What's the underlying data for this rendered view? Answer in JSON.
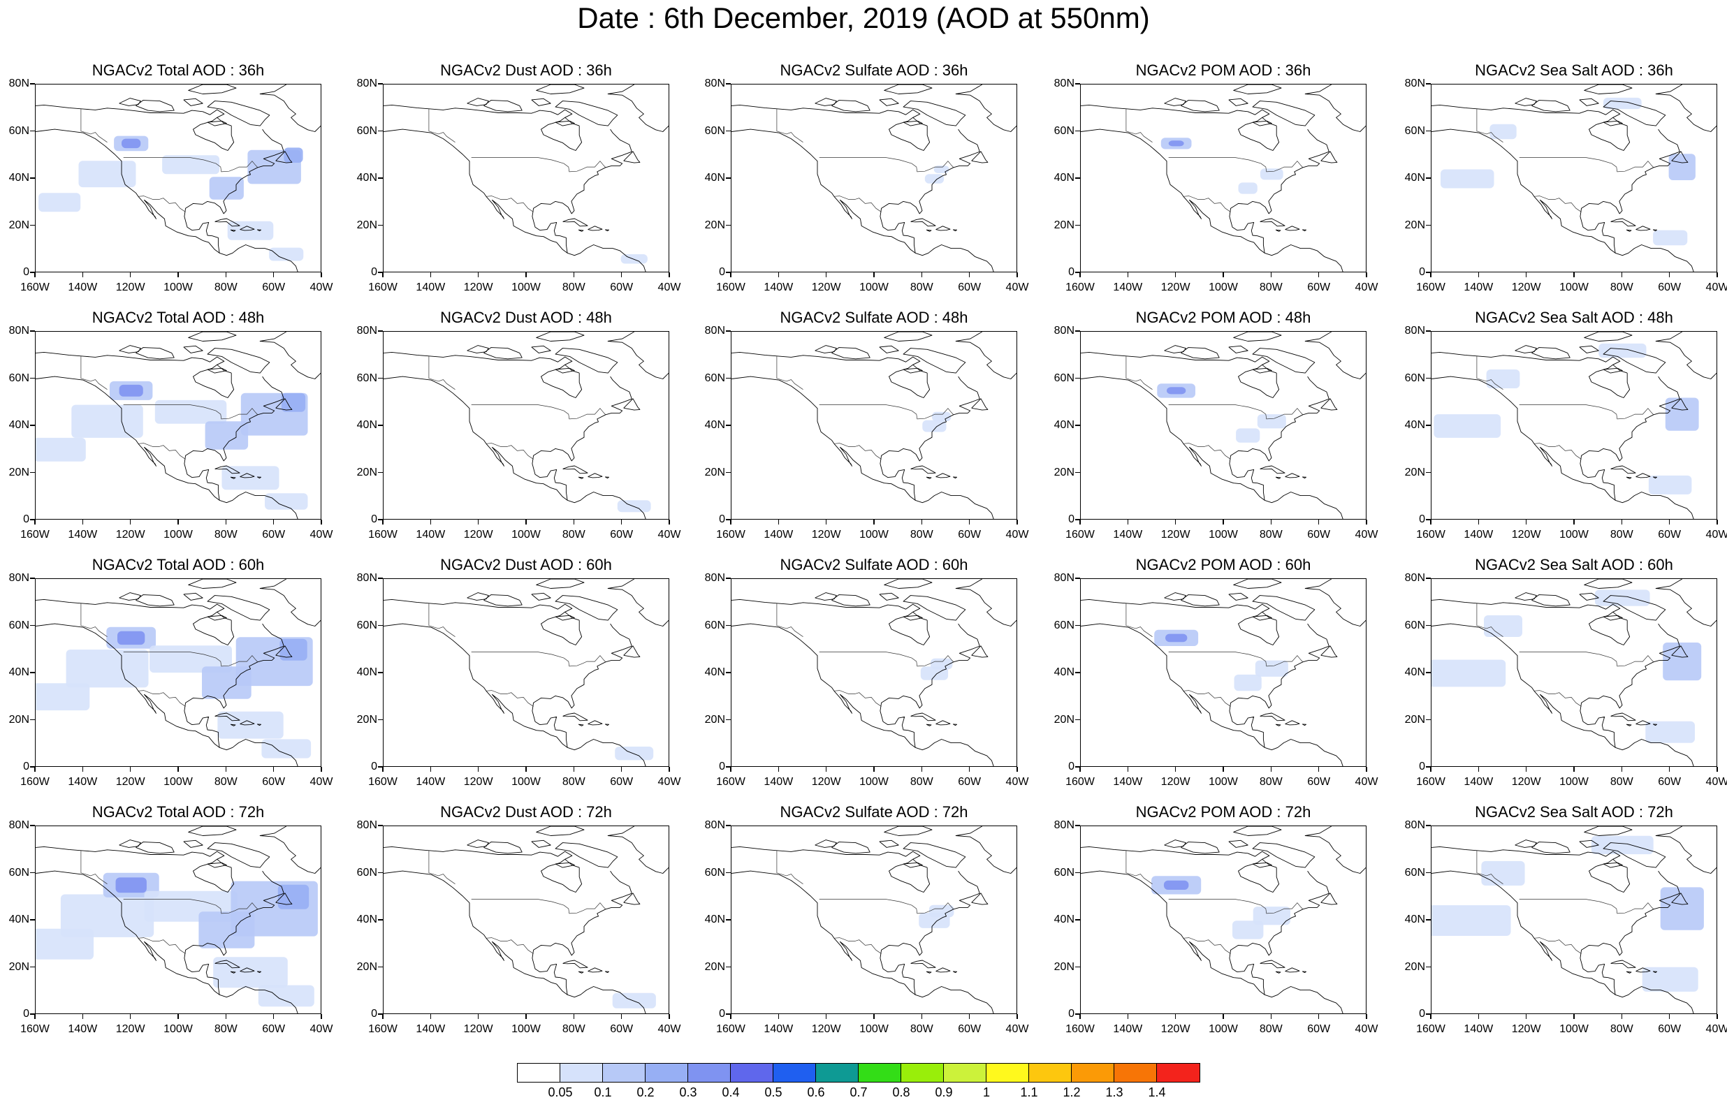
{
  "title": "Date : 6th December, 2019 (AOD at 550nm)",
  "axes": {
    "lon_labels": [
      "160W",
      "140W",
      "120W",
      "100W",
      "80W",
      "60W",
      "40W"
    ],
    "lat_labels": [
      "80N",
      "60N",
      "40N",
      "20N",
      "0"
    ]
  },
  "panels": [
    {
      "title": "NGACv2 Total AOD : 36h",
      "species": "total",
      "hour": 36
    },
    {
      "title": "NGACv2 Dust AOD : 36h",
      "species": "dust",
      "hour": 36
    },
    {
      "title": "NGACv2 Sulfate AOD : 36h",
      "species": "sulfate",
      "hour": 36
    },
    {
      "title": "NGACv2 POM AOD : 36h",
      "species": "pom",
      "hour": 36
    },
    {
      "title": "NGACv2 Sea Salt AOD : 36h",
      "species": "seasalt",
      "hour": 36
    },
    {
      "title": "NGACv2 Total AOD : 48h",
      "species": "total",
      "hour": 48
    },
    {
      "title": "NGACv2 Dust AOD : 48h",
      "species": "dust",
      "hour": 48
    },
    {
      "title": "NGACv2 Sulfate AOD : 48h",
      "species": "sulfate",
      "hour": 48
    },
    {
      "title": "NGACv2 POM AOD : 48h",
      "species": "pom",
      "hour": 48
    },
    {
      "title": "NGACv2 Sea Salt AOD : 48h",
      "species": "seasalt",
      "hour": 48
    },
    {
      "title": "NGACv2 Total AOD : 60h",
      "species": "total",
      "hour": 60
    },
    {
      "title": "NGACv2 Dust AOD : 60h",
      "species": "dust",
      "hour": 60
    },
    {
      "title": "NGACv2 Sulfate AOD : 60h",
      "species": "sulfate",
      "hour": 60
    },
    {
      "title": "NGACv2 POM AOD : 60h",
      "species": "pom",
      "hour": 60
    },
    {
      "title": "NGACv2 Sea Salt AOD : 60h",
      "species": "seasalt",
      "hour": 60
    },
    {
      "title": "NGACv2 Total AOD : 72h",
      "species": "total",
      "hour": 72
    },
    {
      "title": "NGACv2 Dust AOD : 72h",
      "species": "dust",
      "hour": 72
    },
    {
      "title": "NGACv2 Sulfate AOD : 72h",
      "species": "sulfate",
      "hour": 72
    },
    {
      "title": "NGACv2 POM AOD : 72h",
      "species": "pom",
      "hour": 72
    },
    {
      "title": "NGACv2 Sea Salt  AOD : 72h",
      "species": "seasalt",
      "hour": 72
    }
  ],
  "colorbar": {
    "colors": [
      "#ffffff",
      "#d6e2fb",
      "#b7c9f7",
      "#97aff4",
      "#7f93f1",
      "#5f67ec",
      "#1f5ff0",
      "#0e9a94",
      "#33dd17",
      "#99ee0a",
      "#ccf23a",
      "#fff91d",
      "#fdc70e",
      "#fb9a06",
      "#f77506",
      "#f3231c"
    ],
    "labels": [
      "0.05",
      "0.1",
      "0.2",
      "0.3",
      "0.4",
      "0.5",
      "0.6",
      "0.7",
      "0.8",
      "0.9",
      "1",
      "1.1",
      "1.2",
      "1.3",
      "1.4"
    ]
  }
}
